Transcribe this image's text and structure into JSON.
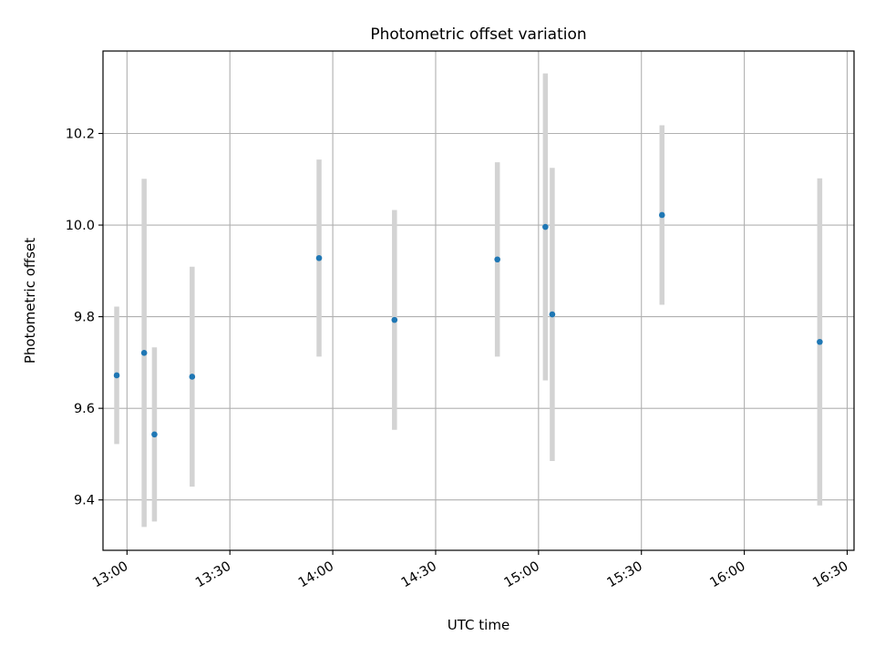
{
  "chart_data": {
    "type": "scatter",
    "title": "Photometric offset variation",
    "xlabel": "UTC time",
    "ylabel": "Photometric offset",
    "x_unit": "UTC time (HH:MM)",
    "xlim": [
      "12:53",
      "16:32"
    ],
    "ylim": [
      9.29,
      10.38
    ],
    "x_ticks": [
      "13:00",
      "13:30",
      "14:00",
      "14:30",
      "15:00",
      "15:30",
      "16:00",
      "16:30"
    ],
    "y_ticks": [
      9.4,
      9.6,
      9.8,
      10.0,
      10.2
    ],
    "y_tick_labels": [
      "9.4",
      "9.6",
      "9.8",
      "10.0",
      "10.2"
    ],
    "grid": true,
    "point_color": "#1f77b4",
    "errorbar_color": "#d3d3d3",
    "points": [
      {
        "x": "12:57",
        "y": 9.672,
        "yerr": 0.15
      },
      {
        "x": "13:05",
        "y": 9.721,
        "yerr": 0.38
      },
      {
        "x": "13:08",
        "y": 9.543,
        "yerr": 0.19
      },
      {
        "x": "13:19",
        "y": 9.669,
        "yerr": 0.24
      },
      {
        "x": "13:56",
        "y": 9.928,
        "yerr": 0.215
      },
      {
        "x": "14:18",
        "y": 9.793,
        "yerr": 0.24
      },
      {
        "x": "14:48",
        "y": 9.925,
        "yerr": 0.212
      },
      {
        "x": "15:02",
        "y": 9.996,
        "yerr": 0.335
      },
      {
        "x": "15:04",
        "y": 9.805,
        "yerr": 0.32
      },
      {
        "x": "15:36",
        "y": 10.022,
        "yerr": 0.196
      },
      {
        "x": "16:22",
        "y": 9.745,
        "yerr": 0.357
      }
    ]
  }
}
